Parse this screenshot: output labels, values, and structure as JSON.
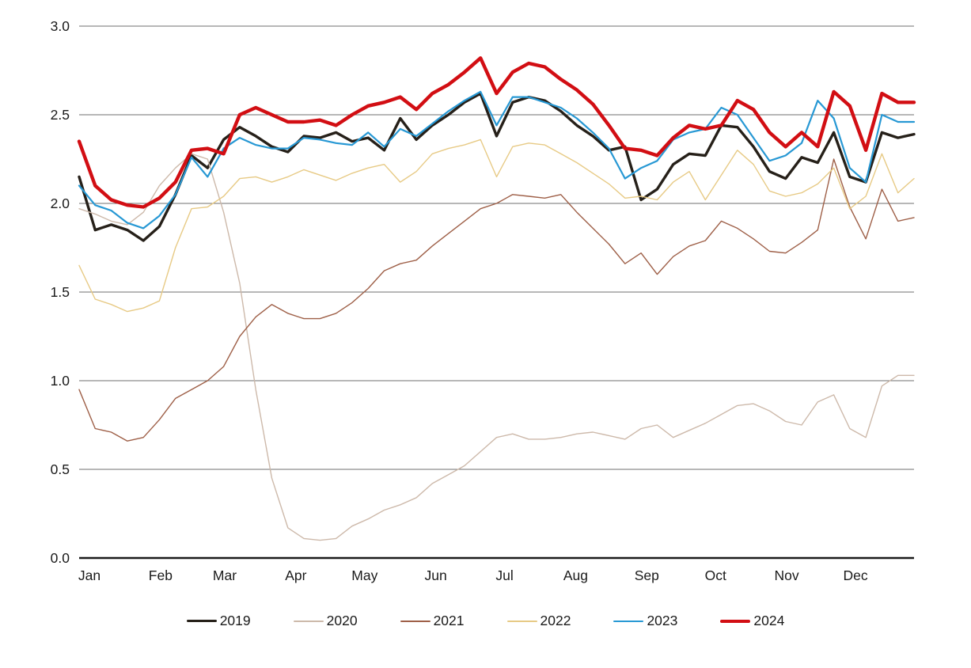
{
  "chart_data": {
    "type": "line",
    "title": "",
    "x_axis": {
      "unit": "day-of-year",
      "tick_labels": [
        "Jan",
        "Feb",
        "Mar",
        "Apr",
        "May",
        "Jun",
        "Jul",
        "Aug",
        "Sep",
        "Oct",
        "Nov",
        "Dec"
      ],
      "month_start_days": [
        0,
        31,
        59,
        90,
        120,
        151,
        181,
        212,
        243,
        273,
        304,
        334
      ],
      "days_span": 364
    },
    "y_axis": {
      "min": 0.0,
      "max": 3.0,
      "tick_step": 0.5,
      "tick_labels": [
        "0.0",
        "0.5",
        "1.0",
        "1.5",
        "2.0",
        "2.5",
        "3.0"
      ]
    },
    "grid": {
      "horizontal": true,
      "vertical": false,
      "color": "#6f6f6f",
      "baseline_color": "#1a1a1a"
    },
    "legend_position": "bottom",
    "sample_interval_days": 7,
    "series": [
      {
        "name": "2019",
        "color": "#262019",
        "line_width": 3.4,
        "values": [
          2.15,
          1.85,
          1.88,
          1.85,
          1.79,
          1.87,
          2.05,
          2.27,
          2.2,
          2.36,
          2.43,
          2.38,
          2.32,
          2.29,
          2.38,
          2.37,
          2.4,
          2.35,
          2.37,
          2.3,
          2.48,
          2.36,
          2.44,
          2.5,
          2.57,
          2.62,
          2.38,
          2.57,
          2.6,
          2.58,
          2.52,
          2.44,
          2.38,
          2.3,
          2.32,
          2.02,
          2.08,
          2.22,
          2.28,
          2.27,
          2.44,
          2.43,
          2.32,
          2.18,
          2.14,
          2.26,
          2.23,
          2.4,
          2.15,
          2.12,
          2.4,
          2.37,
          2.39
        ]
      },
      {
        "name": "2020",
        "color": "#cdb9aa",
        "line_width": 1.4,
        "values": [
          1.97,
          1.94,
          1.9,
          1.88,
          1.95,
          2.1,
          2.2,
          2.28,
          2.25,
          1.95,
          1.55,
          0.95,
          0.45,
          0.17,
          0.11,
          0.1,
          0.11,
          0.18,
          0.22,
          0.27,
          0.3,
          0.34,
          0.42,
          0.47,
          0.52,
          0.6,
          0.68,
          0.7,
          0.67,
          0.67,
          0.68,
          0.7,
          0.71,
          0.69,
          0.67,
          0.73,
          0.75,
          0.68,
          0.72,
          0.76,
          0.81,
          0.86,
          0.87,
          0.83,
          0.77,
          0.75,
          0.88,
          0.92,
          0.73,
          0.68,
          0.97,
          1.03,
          1.03
        ]
      },
      {
        "name": "2021",
        "color": "#9e5f47",
        "line_width": 1.4,
        "values": [
          0.95,
          0.73,
          0.71,
          0.66,
          0.68,
          0.78,
          0.9,
          0.95,
          1.0,
          1.08,
          1.25,
          1.36,
          1.43,
          1.38,
          1.35,
          1.35,
          1.38,
          1.44,
          1.52,
          1.62,
          1.66,
          1.68,
          1.76,
          1.83,
          1.9,
          1.97,
          2.0,
          2.05,
          2.04,
          2.03,
          2.05,
          1.95,
          1.86,
          1.77,
          1.66,
          1.72,
          1.6,
          1.7,
          1.76,
          1.79,
          1.9,
          1.86,
          1.8,
          1.73,
          1.72,
          1.78,
          1.85,
          2.25,
          1.98,
          1.8,
          2.08,
          1.9,
          1.92
        ]
      },
      {
        "name": "2022",
        "color": "#e7ca85",
        "line_width": 1.4,
        "values": [
          1.65,
          1.46,
          1.43,
          1.39,
          1.41,
          1.45,
          1.75,
          1.97,
          1.98,
          2.04,
          2.14,
          2.15,
          2.12,
          2.15,
          2.19,
          2.16,
          2.13,
          2.17,
          2.2,
          2.22,
          2.12,
          2.18,
          2.28,
          2.31,
          2.33,
          2.36,
          2.15,
          2.32,
          2.34,
          2.33,
          2.28,
          2.23,
          2.17,
          2.11,
          2.03,
          2.04,
          2.02,
          2.12,
          2.18,
          2.02,
          2.16,
          2.3,
          2.22,
          2.07,
          2.04,
          2.06,
          2.11,
          2.2,
          1.97,
          2.04,
          2.28,
          2.06,
          2.14
        ]
      },
      {
        "name": "2023",
        "color": "#2798d4",
        "line_width": 2.2,
        "values": [
          2.1,
          1.99,
          1.96,
          1.89,
          1.86,
          1.93,
          2.05,
          2.26,
          2.15,
          2.31,
          2.37,
          2.33,
          2.31,
          2.31,
          2.37,
          2.36,
          2.34,
          2.33,
          2.4,
          2.32,
          2.42,
          2.38,
          2.45,
          2.52,
          2.58,
          2.63,
          2.44,
          2.6,
          2.6,
          2.57,
          2.54,
          2.48,
          2.4,
          2.31,
          2.14,
          2.2,
          2.24,
          2.36,
          2.4,
          2.42,
          2.54,
          2.5,
          2.37,
          2.24,
          2.27,
          2.34,
          2.58,
          2.48,
          2.2,
          2.12,
          2.5,
          2.46,
          2.46
        ]
      },
      {
        "name": "2024",
        "color": "#d20e13",
        "line_width": 4.4,
        "values": [
          2.35,
          2.1,
          2.02,
          1.99,
          1.98,
          2.03,
          2.12,
          2.3,
          2.31,
          2.28,
          2.5,
          2.54,
          2.5,
          2.46,
          2.46,
          2.47,
          2.44,
          2.5,
          2.55,
          2.57,
          2.6,
          2.53,
          2.62,
          2.67,
          2.74,
          2.82,
          2.62,
          2.74,
          2.79,
          2.77,
          2.7,
          2.64,
          2.56,
          2.44,
          2.31,
          2.3,
          2.27,
          2.37,
          2.44,
          2.42,
          2.44,
          2.58,
          2.53,
          2.4,
          2.32,
          2.4,
          2.32,
          2.63,
          2.55,
          2.3,
          2.62,
          2.57,
          2.57
        ]
      }
    ]
  }
}
